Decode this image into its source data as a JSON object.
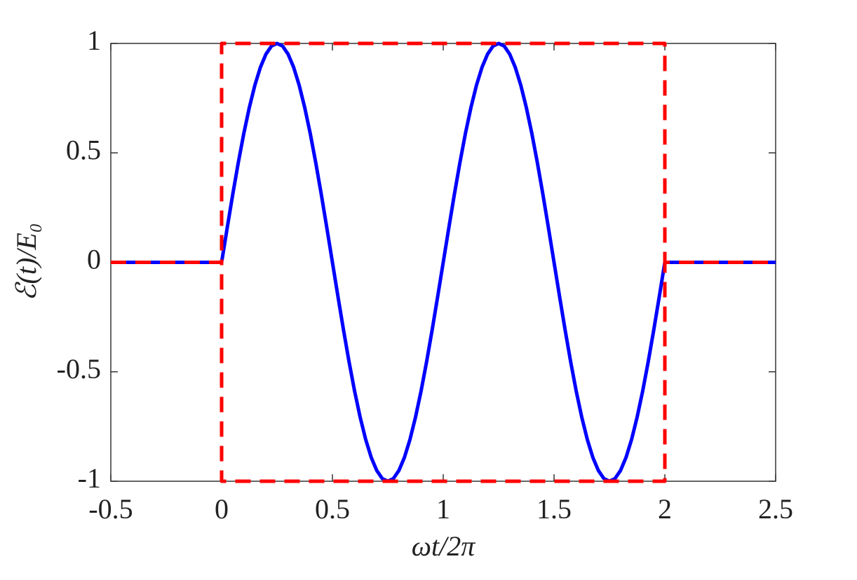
{
  "chart_data": {
    "type": "line",
    "xlabel": "ωt/2π",
    "ylabel": "ℰ(t)/E₀",
    "xlim": [
      -0.5,
      2.5
    ],
    "xticks": [
      -0.5,
      0,
      0.5,
      1,
      1.5,
      2,
      2.5
    ],
    "ylim": [
      -1,
      1
    ],
    "yticks": [
      -1,
      -0.5,
      0,
      0.5,
      1
    ],
    "grid": false,
    "series": [
      {
        "color": "#0000ff",
        "dash": false,
        "x": [
          -0.5,
          0,
          0.025,
          0.05,
          0.075,
          0.1,
          0.125,
          0.15,
          0.175,
          0.2,
          0.225,
          0.25,
          0.275,
          0.3,
          0.325,
          0.35,
          0.375,
          0.4,
          0.425,
          0.45,
          0.475,
          0.5,
          0.525,
          0.55,
          0.575,
          0.6,
          0.625,
          0.65,
          0.675,
          0.7,
          0.725,
          0.75,
          0.775,
          0.8,
          0.825,
          0.85,
          0.875,
          0.9,
          0.925,
          0.95,
          0.975,
          1,
          1.025,
          1.05,
          1.075,
          1.1,
          1.125,
          1.15,
          1.175,
          1.2,
          1.225,
          1.25,
          1.275,
          1.3,
          1.325,
          1.35,
          1.375,
          1.4,
          1.425,
          1.45,
          1.475,
          1.5,
          1.525,
          1.55,
          1.575,
          1.6,
          1.625,
          1.65,
          1.675,
          1.7,
          1.725,
          1.75,
          1.775,
          1.8,
          1.825,
          1.85,
          1.875,
          1.9,
          1.925,
          1.95,
          1.975,
          2,
          2.5
        ],
        "values": [
          0,
          0,
          0.156,
          0.309,
          0.454,
          0.588,
          0.707,
          0.809,
          0.891,
          0.951,
          0.988,
          1,
          0.988,
          0.951,
          0.891,
          0.809,
          0.707,
          0.588,
          0.454,
          0.309,
          0.156,
          0,
          -0.156,
          -0.309,
          -0.454,
          -0.588,
          -0.707,
          -0.809,
          -0.891,
          -0.951,
          -0.988,
          -1,
          -0.988,
          -0.951,
          -0.891,
          -0.809,
          -0.707,
          -0.588,
          -0.454,
          -0.309,
          -0.156,
          0,
          0.156,
          0.309,
          0.454,
          0.588,
          0.707,
          0.809,
          0.891,
          0.951,
          0.988,
          1,
          0.988,
          0.951,
          0.891,
          0.809,
          0.707,
          0.588,
          0.454,
          0.309,
          0.156,
          0,
          -0.156,
          -0.309,
          -0.454,
          -0.588,
          -0.707,
          -0.809,
          -0.891,
          -0.951,
          -0.988,
          -1,
          -0.988,
          -0.951,
          -0.891,
          -0.809,
          -0.707,
          -0.588,
          -0.454,
          -0.309,
          -0.156,
          0,
          0
        ]
      },
      {
        "color": "#ff0000",
        "dash": true,
        "x": [
          -0.5,
          0,
          0,
          2,
          2,
          2.5
        ],
        "values": [
          0,
          0,
          1,
          1,
          0,
          0
        ]
      },
      {
        "color": "#ff0000",
        "dash": true,
        "x": [
          -0.5,
          0,
          0,
          2,
          2,
          2.5
        ],
        "values": [
          0,
          0,
          -1,
          -1,
          0,
          0
        ]
      }
    ]
  }
}
